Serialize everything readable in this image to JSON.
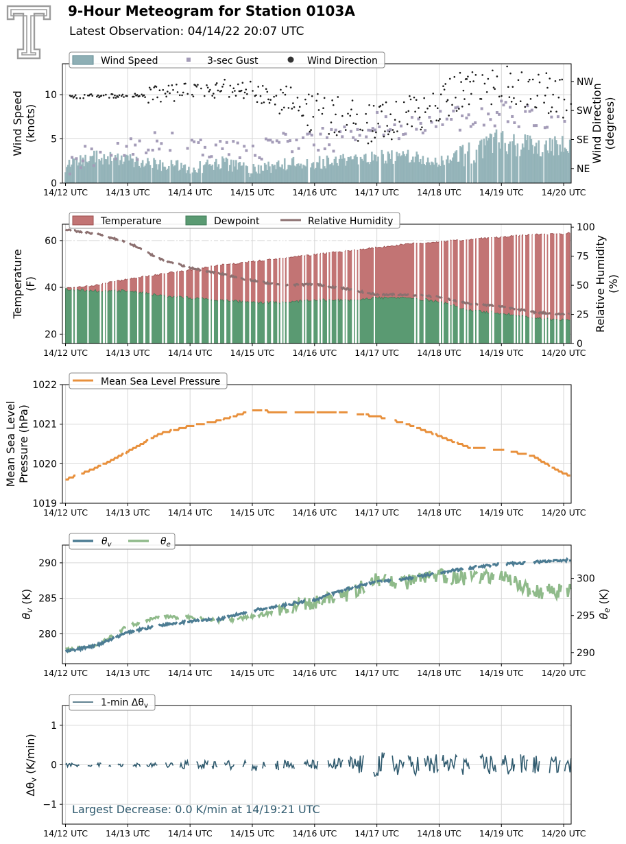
{
  "header": {
    "title": "9-Hour Meteogram for Station 0103A",
    "subtitle": "Latest Observation: 04/14/22 20:07 UTC"
  },
  "logo": {
    "icon": "double-t-logo-icon",
    "color": "#9c9c9c"
  },
  "x_ticks": [
    "14/12 UTC",
    "14/13 UTC",
    "14/14 UTC",
    "14/15 UTC",
    "14/16 UTC",
    "14/17 UTC",
    "14/18 UTC",
    "14/19 UTC",
    "14/20 UTC"
  ],
  "chart_data": [
    {
      "type": "area",
      "id": "wind",
      "x_range_hours": [
        11.95,
        20.12
      ],
      "ylabel": [
        "Wind Speed",
        "(knots)"
      ],
      "ylim": [
        0,
        13.5
      ],
      "yticks": [
        0,
        5,
        10
      ],
      "y2label": [
        "Wind Direction",
        "(degrees)"
      ],
      "y2ticks": [
        "NE",
        "SE",
        "SW",
        "NW"
      ],
      "y2_tick_degrees": [
        45,
        135,
        225,
        315
      ],
      "y2lim": [
        0,
        370
      ],
      "grid": true,
      "legend": [
        "Wind Speed",
        "3-sec Gust",
        "Wind Direction"
      ],
      "legend_placement": "top-left",
      "colors": {
        "speed": "#8eafb5",
        "speed_edge": "#5f8a92",
        "gust": "#a49cb8",
        "direction": "#1a1a1a"
      },
      "series": [
        {
          "name": "Wind Speed",
          "x": [
            12,
            12.5,
            13,
            13.5,
            14,
            14.5,
            15,
            15.5,
            16,
            16.5,
            17,
            17.5,
            18,
            18.5,
            19,
            19.5,
            20
          ],
          "values": [
            1.8,
            2.8,
            2.5,
            2.0,
            1.5,
            2.2,
            1.2,
            2.0,
            2.0,
            2.6,
            2.8,
            2.8,
            2.2,
            3.2,
            4.5,
            3.8,
            3.6
          ]
        },
        {
          "name": "3-sec Gust",
          "x": [
            12,
            12.5,
            13,
            13.5,
            14,
            14.5,
            15,
            15.5,
            16,
            16.5,
            17,
            17.5,
            18,
            18.5,
            19,
            19.5,
            20
          ],
          "values": [
            2.2,
            3.2,
            3.5,
            4.5,
            4.0,
            4.0,
            3.8,
            4.8,
            4.5,
            5.5,
            6.5,
            6.5,
            7.0,
            7.5,
            8.0,
            7.5,
            7.0
          ]
        },
        {
          "name": "Wind Direction",
          "x": [
            12,
            12.5,
            13,
            13.5,
            14,
            14.5,
            15,
            15.5,
            16,
            16.5,
            17,
            17.5,
            18,
            18.5,
            19,
            19.5,
            20
          ],
          "values": [
            265,
            272,
            268,
            282,
            280,
            292,
            288,
            240,
            220,
            200,
            180,
            205,
            240,
            305,
            300,
            290,
            265
          ]
        }
      ]
    },
    {
      "type": "area",
      "id": "temp",
      "x_range_hours": [
        11.95,
        20.12
      ],
      "ylabel": [
        "Temperature",
        "(F)"
      ],
      "ylim": [
        16,
        67
      ],
      "yticks": [
        20,
        40,
        60
      ],
      "y2label": [
        "Relative Humidity",
        "(%)"
      ],
      "y2lim": [
        0,
        102.5
      ],
      "y2ticks": [
        0,
        25,
        50,
        75,
        100
      ],
      "grid": true,
      "legend": [
        "Temperature",
        "Dewpoint",
        "Relative Humidity"
      ],
      "legend_placement": "top-left",
      "colors": {
        "temperature": "#c27474",
        "temperature_edge": "#9a4b4b",
        "dewpoint": "#5a9a72",
        "dewpoint_edge": "#3d7a55",
        "rh": "#8c7070",
        "rh_dark": "#6a3b3b"
      },
      "series": [
        {
          "name": "Temperature",
          "x": [
            12,
            12.5,
            13,
            13.5,
            14,
            14.5,
            15,
            15.5,
            16,
            16.5,
            17,
            17.5,
            18,
            18.5,
            19,
            19.5,
            20,
            20.1
          ],
          "values": [
            39.5,
            41,
            43.5,
            45.5,
            47.5,
            49.5,
            51,
            52.5,
            54,
            55.5,
            57,
            58.5,
            59.5,
            60.5,
            61.5,
            62.5,
            63,
            63.2
          ]
        },
        {
          "name": "Dewpoint",
          "x": [
            12,
            12.5,
            13,
            13.5,
            14,
            14.5,
            15,
            15.5,
            16,
            16.5,
            17,
            17.5,
            18,
            18.5,
            19,
            19.5,
            20,
            20.1
          ],
          "values": [
            39.2,
            38.5,
            38.5,
            36.5,
            35.5,
            34.5,
            33.5,
            33.5,
            34.5,
            34.5,
            35.5,
            35.5,
            34.0,
            30.0,
            29.0,
            27.0,
            26.0,
            26.0
          ]
        },
        {
          "name": "Relative Humidity",
          "x": [
            12,
            12.5,
            13,
            13.5,
            14,
            14.5,
            15,
            15.5,
            16,
            16.5,
            17,
            17.5,
            18,
            18.5,
            19,
            19.5,
            20,
            20.1
          ],
          "values": [
            98,
            94,
            87,
            73,
            65,
            60,
            54,
            50,
            51,
            47,
            42,
            42,
            40,
            34,
            32,
            27,
            25,
            26
          ]
        }
      ]
    },
    {
      "type": "line",
      "id": "pressure",
      "x_range_hours": [
        11.95,
        20.12
      ],
      "ylabel": [
        "Mean Sea Level",
        "Pressure (hPa)"
      ],
      "ylim": [
        1019,
        1022
      ],
      "yticks": [
        1019,
        1020,
        1021,
        1022
      ],
      "grid": true,
      "legend": [
        "Mean Sea Level Pressure"
      ],
      "legend_placement": "top-left",
      "colors": {
        "line": "#e8903c"
      },
      "series": [
        {
          "name": "Mean Sea Level Pressure",
          "x": [
            12,
            12.5,
            13,
            13.5,
            14,
            14.5,
            15,
            15.5,
            16,
            16.5,
            17,
            17.5,
            18,
            18.5,
            19,
            19.5,
            20,
            20.1
          ],
          "values": [
            1019.6,
            1019.9,
            1020.3,
            1020.75,
            1020.95,
            1021.1,
            1021.35,
            1021.3,
            1021.3,
            1021.3,
            1021.2,
            1021.0,
            1020.7,
            1020.4,
            1020.35,
            1020.2,
            1019.75,
            1019.7
          ]
        }
      ]
    },
    {
      "type": "line",
      "id": "theta",
      "x_range_hours": [
        11.95,
        20.12
      ],
      "ylabel": [
        "θv (K)"
      ],
      "ylim": [
        275.8,
        292.5
      ],
      "yticks": [
        280,
        285,
        290
      ],
      "y2label": [
        "θe (K)"
      ],
      "y2lim": [
        288.5,
        304.5
      ],
      "y2ticks": [
        290,
        295,
        300
      ],
      "grid": true,
      "legend": [
        "θv",
        "θe"
      ],
      "legend_placement": "top-left",
      "colors": {
        "theta_v": "#4c7c93",
        "theta_e": "#8fba8a"
      },
      "series": [
        {
          "name": "θv",
          "x": [
            12,
            12.5,
            13,
            13.5,
            14,
            14.5,
            15,
            15.5,
            16,
            16.5,
            17,
            17.5,
            18,
            18.5,
            19,
            19.5,
            20,
            20.1
          ],
          "values": [
            277.5,
            278.4,
            280.2,
            281.2,
            281.8,
            282.1,
            283.3,
            284.0,
            284.8,
            286.3,
            287.3,
            287.8,
            288.6,
            289.3,
            289.8,
            290.1,
            290.3,
            290.4
          ]
        },
        {
          "name": "θe",
          "x": [
            12,
            12.5,
            13,
            13.5,
            14,
            14.5,
            15,
            15.5,
            16,
            16.5,
            17,
            17.5,
            18,
            18.5,
            19,
            19.5,
            20,
            20.1
          ],
          "values": [
            290.3,
            291.0,
            293.5,
            294.8,
            294.8,
            294.3,
            294.8,
            295.8,
            296.8,
            297.8,
            299.8,
            299.5,
            300.3,
            300.0,
            300.3,
            298.2,
            298.3,
            298.5
          ]
        }
      ]
    },
    {
      "type": "line",
      "id": "dtheta",
      "x_range_hours": [
        11.95,
        20.12
      ],
      "ylabel": [
        "Δθv (K/min)"
      ],
      "ylim": [
        -1.5,
        1.5
      ],
      "yticks": [
        -1,
        0,
        1
      ],
      "grid": true,
      "legend": [
        "1-min Δθv"
      ],
      "legend_placement": "top-left",
      "annotation": "Largest Decrease: 0.0 K/min at 14/19:21 UTC",
      "colors": {
        "line": "#2f5a6e",
        "annotation": "#2f5a6e"
      },
      "series": [
        {
          "name": "1-min Δθv",
          "x": [
            12,
            12.5,
            13,
            13.5,
            14,
            14.5,
            15,
            15.5,
            16,
            16.5,
            17,
            17.5,
            18,
            18.5,
            19,
            19.5,
            20
          ],
          "amplitude": [
            0.05,
            0.05,
            0.05,
            0.05,
            0.12,
            0.1,
            0.15,
            0.15,
            0.12,
            0.2,
            0.35,
            0.25,
            0.3,
            0.25,
            0.3,
            0.25,
            0.2
          ]
        }
      ]
    }
  ]
}
